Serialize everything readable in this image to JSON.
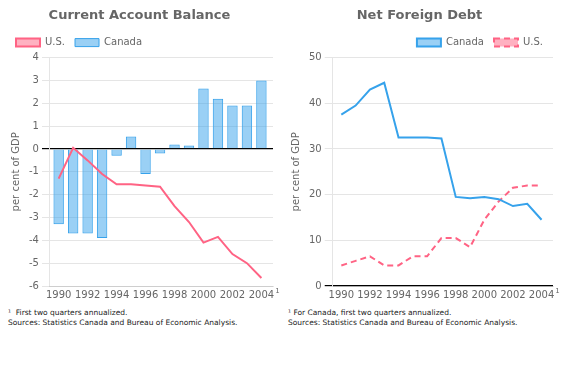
{
  "chart_data": [
    {
      "type": "bar",
      "title": "Current Account Balance",
      "y_label": "per cent of GDP",
      "x": [
        1990,
        1991,
        1992,
        1993,
        1994,
        1995,
        1996,
        1997,
        1998,
        1999,
        2000,
        2001,
        2002,
        2003,
        2004
      ],
      "series": [
        {
          "name": "Canada",
          "type": "bar",
          "values": [
            -3.3,
            -3.7,
            -3.7,
            -3.9,
            -0.3,
            0.55,
            -1.1,
            -0.2,
            0.2,
            0.15,
            2.65,
            2.2,
            1.9,
            1.9,
            3.0
          ]
        },
        {
          "name": "U.S.",
          "type": "line",
          "line_style": "solid",
          "marker": "none",
          "values": [
            -1.3,
            0.05,
            -0.5,
            -1.1,
            -1.55,
            -1.55,
            -1.6,
            -1.65,
            -2.5,
            -3.2,
            -4.1,
            -3.85,
            -4.6,
            -5.0,
            -5.65
          ]
        }
      ],
      "xlim": [
        1989.4,
        2004.8
      ],
      "xticks": [
        1990,
        1992,
        1994,
        1996,
        1998,
        2000,
        2002,
        2004
      ],
      "ylim": [
        -6,
        4
      ],
      "yticks": [
        -6,
        -5,
        -4,
        -3,
        -2,
        -1,
        0,
        1,
        2,
        3,
        4
      ],
      "grid": true,
      "legend": "upper left",
      "annotations": [
        {
          "text": "1",
          "x": 2004
        }
      ],
      "footnote": "¹  First two quarters annualized.\nSources: Statistics Canada and Bureau of Economic Analysis."
    },
    {
      "type": "line",
      "title": "Net Foreign Debt",
      "y_label": "per cent of GDP",
      "x": [
        1990,
        1991,
        1992,
        1993,
        1994,
        1995,
        1996,
        1997,
        1998,
        1999,
        2000,
        2001,
        2002,
        2003,
        2004
      ],
      "series": [
        {
          "name": "Canada",
          "line_style": "solid",
          "marker": "none",
          "values": [
            37.5,
            39.5,
            43.0,
            44.5,
            32.5,
            32.5,
            32.5,
            32.3,
            19.5,
            19.2,
            19.5,
            19.0,
            17.5,
            18.0,
            14.5
          ]
        },
        {
          "name": "U.S.",
          "line_style": "dashed",
          "marker": "none",
          "values": [
            4.5,
            5.5,
            6.5,
            4.5,
            4.5,
            6.5,
            6.5,
            10.5,
            10.5,
            8.5,
            14.5,
            18.5,
            21.5,
            22.0,
            22.0
          ]
        }
      ],
      "xlim": [
        1989.4,
        2004.8
      ],
      "xticks": [
        1990,
        1992,
        1994,
        1996,
        1998,
        2000,
        2002,
        2004
      ],
      "ylim": [
        0,
        50
      ],
      "yticks": [
        0,
        10,
        20,
        30,
        40,
        50
      ],
      "grid": true,
      "legend": "upper right",
      "annotations": [
        {
          "text": "1",
          "x": 2004
        }
      ],
      "footnote": "¹ For Canada, first two quarters annualized.\nSources: Statistics Canada and Bureau of Economic Analysis."
    }
  ]
}
